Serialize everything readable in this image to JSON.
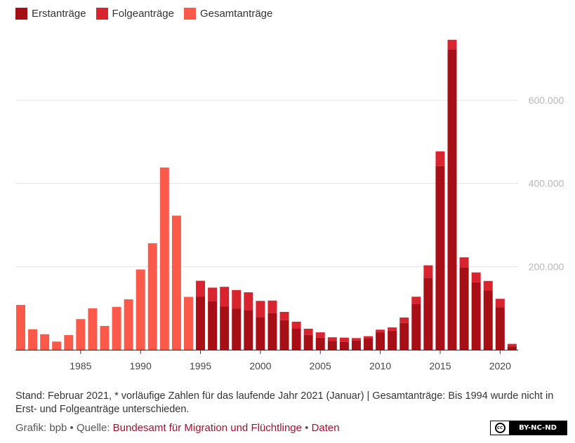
{
  "legend": [
    {
      "label": "Erstanträge",
      "color": "#a50f15"
    },
    {
      "label": "Folgeanträge",
      "color": "#d9232e"
    },
    {
      "label": "Gesamtanträge",
      "color": "#fb5a4b"
    }
  ],
  "chart_data": {
    "type": "bar",
    "stacked": true,
    "x": [
      1980,
      1981,
      1982,
      1983,
      1984,
      1985,
      1986,
      1987,
      1988,
      1989,
      1990,
      1991,
      1992,
      1993,
      1994,
      1995,
      1996,
      1997,
      1998,
      1999,
      2000,
      2001,
      2002,
      2003,
      2004,
      2005,
      2006,
      2007,
      2008,
      2009,
      2010,
      2011,
      2012,
      2013,
      2014,
      2015,
      2016,
      2017,
      2018,
      2019,
      2020,
      2021
    ],
    "series": [
      {
        "name": "Erstanträge",
        "color": "#a50f15",
        "values": [
          null,
          null,
          null,
          null,
          null,
          null,
          null,
          null,
          null,
          null,
          null,
          null,
          null,
          null,
          null,
          127937,
          116367,
          104353,
          98644,
          95113,
          78564,
          88287,
          71127,
          50563,
          35607,
          28914,
          21029,
          19164,
          22085,
          27649,
          41332,
          45741,
          64539,
          109580,
          173072,
          441899,
          722370,
          198317,
          161931,
          142509,
          102581,
          8200
        ]
      },
      {
        "name": "Folgeanträge",
        "color": "#d9232e",
        "values": [
          null,
          null,
          null,
          null,
          null,
          null,
          null,
          null,
          null,
          null,
          null,
          null,
          null,
          null,
          null,
          38014,
          33000,
          47000,
          45000,
          43000,
          39000,
          30000,
          20000,
          17000,
          15000,
          13000,
          9000,
          10000,
          6000,
          5000,
          7000,
          8000,
          13000,
          18000,
          30000,
          35000,
          23000,
          24000,
          24000,
          23000,
          20000,
          6000
        ]
      },
      {
        "name": "Gesamtanträge",
        "color": "#fb5a4b",
        "values": [
          107818,
          49391,
          37423,
          19737,
          35278,
          73832,
          99650,
          57379,
          103076,
          121318,
          193063,
          256112,
          438191,
          322599,
          127210,
          null,
          null,
          null,
          null,
          null,
          null,
          null,
          null,
          null,
          null,
          null,
          null,
          null,
          null,
          null,
          null,
          null,
          null,
          null,
          null,
          null,
          null,
          null,
          null,
          null,
          null,
          null
        ]
      }
    ],
    "xticks": [
      "1985",
      "1990",
      "1995",
      "2000",
      "2005",
      "2010",
      "2015",
      "2020"
    ],
    "yticks": [
      "200.000",
      "400.000",
      "600.000"
    ],
    "ylim": [
      0,
      750000
    ]
  },
  "note": "Stand: Februar 2021, * vorläufige Zahlen für das laufende Jahr 2021 (Januar) | Gesamtanträge: Bis 1994 wurde nicht in Erst- und Folgeanträge unterschieden.",
  "footer": {
    "grafik_label": "Grafik: bpb",
    "sep1": " • ",
    "quelle_label": "Quelle: ",
    "source": "Bundesamt für Migration und Flüchtlinge",
    "sep2": " • ",
    "data_link": "Daten"
  },
  "license": "BY-NC-ND",
  "cc_symbol": "cc"
}
